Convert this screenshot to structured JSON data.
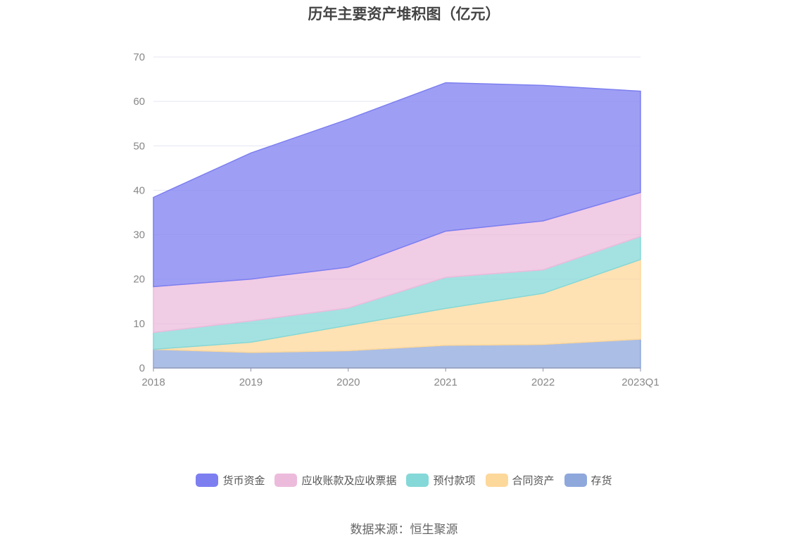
{
  "chart_data": {
    "type": "area",
    "stacked": true,
    "title": "历年主要资产堆积图（亿元）",
    "xlabel": "",
    "ylabel": "",
    "categories": [
      "2018",
      "2019",
      "2020",
      "2021",
      "2022",
      "2023Q1"
    ],
    "ylim": [
      0,
      70
    ],
    "yticks": [
      0,
      10,
      20,
      30,
      40,
      50,
      60,
      70
    ],
    "grid": true,
    "legend_position": "bottom",
    "series": [
      {
        "name": "存货",
        "color": "#8fa8dc",
        "values": [
          4.2,
          3.5,
          3.9,
          5.1,
          5.3,
          6.5
        ]
      },
      {
        "name": "合同资产",
        "color": "#fdd89b",
        "values": [
          0.0,
          2.3,
          5.7,
          8.3,
          11.5,
          17.9
        ]
      },
      {
        "name": "预付款项",
        "color": "#85d8d8",
        "values": [
          3.8,
          4.8,
          3.9,
          7.0,
          5.3,
          5.2
        ]
      },
      {
        "name": "应收账款及应收票据",
        "color": "#ecbbdc",
        "values": [
          10.3,
          9.4,
          9.2,
          10.4,
          11.0,
          9.9
        ]
      },
      {
        "name": "货币资金",
        "color": "#7d7ff0",
        "values": [
          20.1,
          28.4,
          33.3,
          33.4,
          30.5,
          22.8
        ]
      }
    ],
    "legend_order": [
      "货币资金",
      "应收账款及应收票据",
      "预付款项",
      "合同资产",
      "存货"
    ]
  },
  "source_text": "数据来源：恒生聚源"
}
